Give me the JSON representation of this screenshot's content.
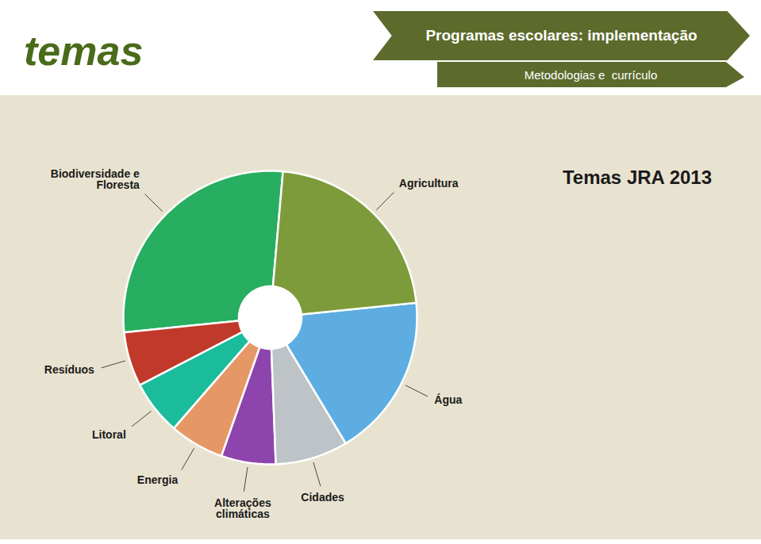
{
  "chart_data": {
    "type": "pie",
    "title": "Programas escolares: implementação",
    "subtitle": "Metodologias e  currículo",
    "annotations": [
      "temas",
      "Temas JRA 2013"
    ],
    "categories": [
      "Biodiversidade e\nFloresta",
      "Resíduos",
      "Litoral",
      "Energia",
      "Alterações\nclimáticas",
      "Cidades",
      "Água",
      "Agricultura"
    ],
    "values": [
      28,
      6,
      6,
      6,
      6,
      8,
      18,
      22
    ],
    "colors": [
      "#27AE60",
      "#C0392B",
      "#1ABC9C",
      "#E59866",
      "#8E44AD",
      "#BDC3C7",
      "#5DADE2",
      "#7D9B3A"
    ]
  }
}
